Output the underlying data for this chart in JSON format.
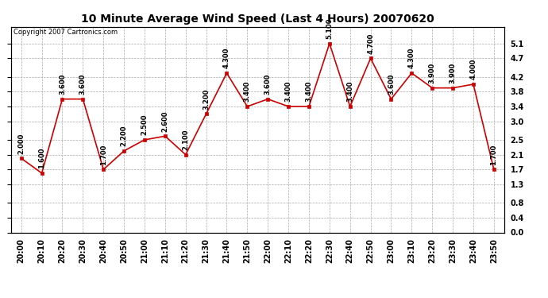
{
  "title": "10 Minute Average Wind Speed (Last 4 Hours) 20070620",
  "copyright": "Copyright 2007 Cartronics.com",
  "x_labels": [
    "20:00",
    "20:10",
    "20:20",
    "20:30",
    "20:40",
    "20:50",
    "21:00",
    "21:10",
    "21:20",
    "21:30",
    "21:40",
    "21:50",
    "22:00",
    "22:10",
    "22:20",
    "22:30",
    "22:40",
    "22:50",
    "23:00",
    "23:10",
    "23:20",
    "23:30",
    "23:40",
    "23:50"
  ],
  "y_values": [
    2.0,
    1.6,
    3.6,
    3.6,
    1.7,
    2.2,
    2.5,
    2.6,
    2.1,
    3.2,
    4.3,
    3.4,
    3.6,
    3.4,
    3.4,
    5.1,
    3.4,
    4.7,
    3.6,
    4.3,
    3.9,
    3.9,
    4.0,
    1.7
  ],
  "data_labels": [
    "2.000",
    "1.600",
    "3.600",
    "3.600",
    "1.700",
    "2.200",
    "2.500",
    "2.600",
    "2.100",
    "3.200",
    "4.300",
    "3.400",
    "3.600",
    "3.400",
    "3.400",
    "5.100",
    "3.400",
    "4.700",
    "3.600",
    "4.300",
    "3.900",
    "3.900",
    "4.000",
    "1.700"
  ],
  "line_color": "#cc0000",
  "marker_color": "#cc0000",
  "background_color": "#ffffff",
  "grid_color": "#aaaaaa",
  "ylim": [
    0.0,
    5.55
  ],
  "yticks": [
    0.0,
    0.4,
    0.8,
    1.3,
    1.7,
    2.1,
    2.5,
    3.0,
    3.4,
    3.8,
    4.2,
    4.7,
    5.1
  ],
  "title_fontsize": 10,
  "label_fontsize": 7,
  "annot_fontsize": 6,
  "copyright_fontsize": 6
}
